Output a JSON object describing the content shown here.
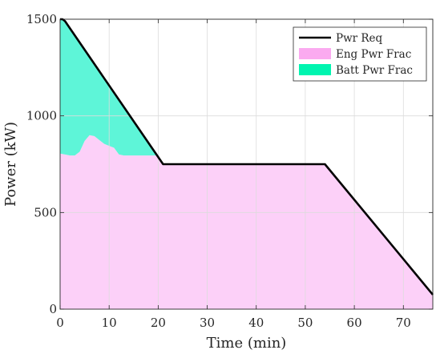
{
  "chart_data": {
    "type": "area",
    "title": "",
    "xlabel": "Time (min)",
    "ylabel": "Power (kW)",
    "xlim": [
      0,
      76
    ],
    "ylim": [
      0,
      1500
    ],
    "xticks": [
      0,
      10,
      20,
      30,
      40,
      50,
      60,
      70
    ],
    "yticks": [
      0,
      500,
      1000,
      1500
    ],
    "grid": true,
    "legend_position": "top-right",
    "series": [
      {
        "name": "Pwr Req",
        "kind": "line",
        "color": "#000000",
        "x": [
          0,
          0.5,
          1,
          21,
          54,
          76
        ],
        "y": [
          1500,
          1500,
          1490,
          750,
          750,
          75
        ]
      },
      {
        "name": "Eng Pwr Frac",
        "kind": "area",
        "color": "#fcd0f8",
        "legend_color": "#fbaaf0",
        "x": [
          0,
          1,
          2,
          3,
          4,
          5,
          6,
          7,
          8,
          9,
          10,
          11,
          12,
          13,
          15,
          18,
          20,
          21,
          54,
          76
        ],
        "y": [
          805,
          800,
          795,
          795,
          815,
          870,
          900,
          895,
          875,
          855,
          845,
          835,
          800,
          795,
          795,
          795,
          795,
          750,
          750,
          75
        ]
      },
      {
        "name": "Batt Pwr Frac",
        "kind": "area",
        "color": "#5ef5d8",
        "legend_color": "#00f5b0",
        "x": [
          0,
          1,
          2,
          3,
          4,
          5,
          6,
          7,
          8,
          9,
          10,
          11,
          12,
          13,
          15,
          18,
          19.8,
          21
        ],
        "y": [
          695,
          690,
          658,
          621,
          564,
          472,
          405,
          373,
          356,
          339,
          312,
          285,
          282,
          250,
          176,
          65,
          0,
          0
        ]
      }
    ]
  },
  "legend": {
    "items": [
      "Pwr Req",
      "Eng Pwr Frac",
      "Batt Pwr Frac"
    ]
  }
}
